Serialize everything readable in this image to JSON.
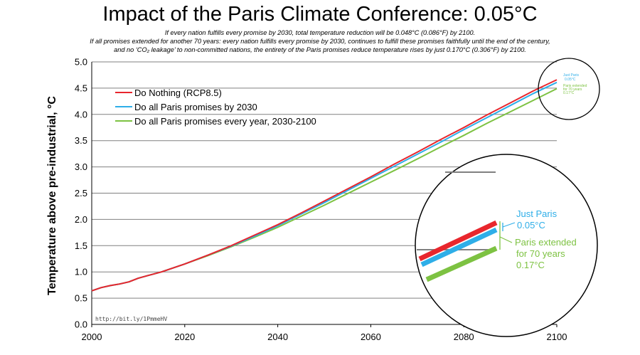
{
  "chart_data": {
    "type": "line",
    "title": "Impact of the Paris Climate Conference: 0.05°C",
    "subtitle_lines": [
      "If every nation fulfills every promise by 2030, total temperature reduction will be 0.048°C (0.086°F) by 2100.",
      "If all promises extended for another 70 years: every nation fulfills every promise by 2030, continues to fulfill these promises faithfully until the end of the century,",
      "and no ‘CO₂ leakage’ to non-committed nations, the entirety of the Paris promises reduce temperature rises by just 0.170°C (0.306°F) by 2100."
    ],
    "xlabel": "",
    "ylabel": "Temperature above pre-industrial, °C",
    "xlim": [
      2000,
      2100
    ],
    "ylim": [
      0.0,
      5.0
    ],
    "xticks": [
      "2000",
      "2020",
      "2040",
      "2060",
      "2080",
      "2100"
    ],
    "yticks": [
      "0.0",
      "0.5",
      "1.0",
      "1.5",
      "2.0",
      "2.5",
      "3.0",
      "3.5",
      "4.0",
      "4.5",
      "5.0"
    ],
    "grid": "horizontal",
    "legend_position": "top-left",
    "series": [
      {
        "name": "Do Nothing (RCP8.5)",
        "color": "#e8262d",
        "x": [
          2000,
          2002,
          2004,
          2006,
          2008,
          2010,
          2012,
          2015,
          2020,
          2025,
          2030,
          2035,
          2040,
          2045,
          2050,
          2055,
          2060,
          2065,
          2070,
          2075,
          2080,
          2085,
          2090,
          2095,
          2100
        ],
        "values": [
          0.64,
          0.7,
          0.74,
          0.77,
          0.81,
          0.88,
          0.93,
          1.0,
          1.15,
          1.32,
          1.5,
          1.7,
          1.9,
          2.12,
          2.35,
          2.58,
          2.81,
          3.05,
          3.28,
          3.52,
          3.75,
          3.99,
          4.22,
          4.45,
          4.66
        ]
      },
      {
        "name": "Do all Paris promises by 2030",
        "color": "#2eaee8",
        "x": [
          2000,
          2002,
          2004,
          2006,
          2008,
          2010,
          2012,
          2015,
          2020,
          2025,
          2030,
          2035,
          2040,
          2045,
          2050,
          2055,
          2060,
          2065,
          2070,
          2075,
          2080,
          2085,
          2090,
          2095,
          2100
        ],
        "values": [
          0.64,
          0.7,
          0.74,
          0.77,
          0.81,
          0.88,
          0.93,
          1.0,
          1.15,
          1.32,
          1.49,
          1.68,
          1.88,
          2.1,
          2.32,
          2.55,
          2.78,
          3.01,
          3.24,
          3.47,
          3.71,
          3.94,
          4.17,
          4.4,
          4.61
        ]
      },
      {
        "name": "Do all Paris promises every year, 2030-2100",
        "color": "#7dc242",
        "x": [
          2000,
          2002,
          2004,
          2006,
          2008,
          2010,
          2012,
          2015,
          2020,
          2025,
          2030,
          2035,
          2040,
          2045,
          2050,
          2055,
          2060,
          2065,
          2070,
          2075,
          2080,
          2085,
          2090,
          2095,
          2100
        ],
        "values": [
          0.64,
          0.7,
          0.74,
          0.77,
          0.81,
          0.88,
          0.93,
          1.0,
          1.15,
          1.31,
          1.48,
          1.66,
          1.85,
          2.06,
          2.27,
          2.49,
          2.71,
          2.93,
          3.15,
          3.38,
          3.6,
          3.83,
          4.05,
          4.27,
          4.49
        ]
      }
    ],
    "annotations": {
      "source": "http://bit.ly/1PmmeHV",
      "small_just_paris": "Just Paris",
      "small_just_paris_value": "0.05°C",
      "small_extended_1": "Paris extended",
      "small_extended_2": "for 70 years",
      "small_extended_value": "0.17°C",
      "zoom_just_paris": "Just Paris",
      "zoom_just_paris_value": "0.05°C",
      "zoom_extended_1": "Paris extended",
      "zoom_extended_2": "for 70 years",
      "zoom_extended_value": "0.17°C"
    }
  }
}
